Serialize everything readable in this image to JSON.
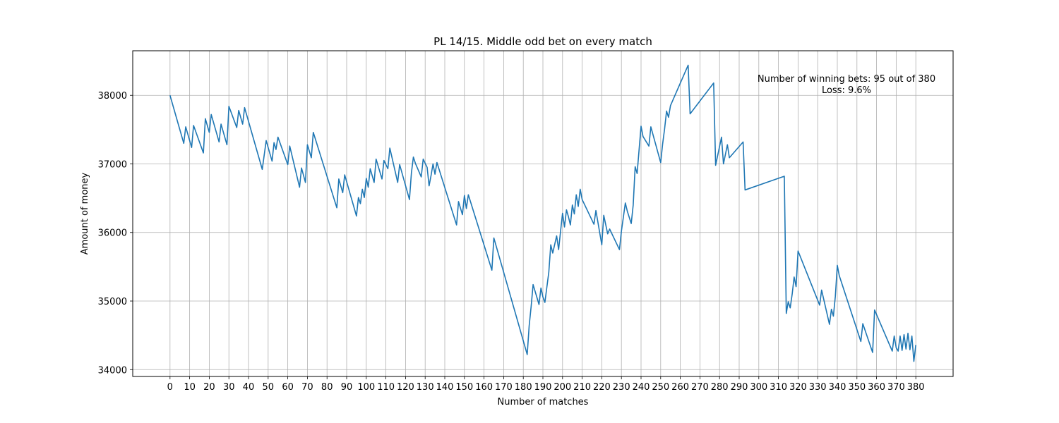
{
  "chart_data": {
    "type": "line",
    "title": "PL 14/15. Middle odd bet on every match",
    "xlabel": "Number of matches",
    "ylabel": "Amount of money",
    "xlim": [
      -19,
      399
    ],
    "ylim": [
      33900,
      38650
    ],
    "xticks": [
      0,
      10,
      20,
      30,
      40,
      50,
      60,
      70,
      80,
      90,
      100,
      110,
      120,
      130,
      140,
      150,
      160,
      170,
      180,
      190,
      200,
      210,
      220,
      230,
      240,
      250,
      260,
      270,
      280,
      290,
      300,
      310,
      320,
      330,
      340,
      350,
      360,
      370,
      380
    ],
    "yticks": [
      34000,
      35000,
      36000,
      37000,
      38000
    ],
    "grid": true,
    "line_color": "#1f77b4",
    "annotations": [
      "Number of winning bets: 95 out of 380",
      "Loss: 9.6%"
    ],
    "series": [
      {
        "x": [
          0,
          7,
          8,
          11,
          12,
          17,
          18,
          20,
          21,
          25,
          26,
          29,
          30,
          34,
          35,
          37,
          38,
          47,
          49,
          52,
          53,
          54,
          55,
          60,
          61,
          66,
          67,
          69,
          70,
          72,
          73,
          85,
          86,
          88,
          89,
          95,
          96,
          97,
          98,
          99,
          100,
          101,
          102,
          104,
          105,
          108,
          109,
          111,
          112,
          116,
          117,
          122,
          123,
          124,
          125,
          128,
          129,
          131,
          132,
          133,
          134,
          135,
          136,
          146,
          147,
          149,
          150,
          151,
          152,
          164,
          165,
          182,
          183,
          184,
          185,
          188,
          189,
          190,
          191,
          192,
          193,
          194,
          195,
          197,
          198,
          199,
          200,
          201,
          202,
          203,
          204,
          205,
          206,
          207,
          208,
          209,
          210,
          216,
          217,
          220,
          221,
          223,
          224,
          229,
          230,
          232,
          233,
          235,
          236,
          237,
          238,
          240,
          241,
          244,
          245,
          250,
          251,
          252,
          253,
          254,
          255,
          264,
          265,
          277,
          278,
          281,
          282,
          284,
          285,
          292,
          293,
          313,
          314,
          315,
          316,
          317,
          318,
          319,
          320,
          331,
          332,
          336,
          337,
          338,
          339,
          340,
          341,
          352,
          353,
          358,
          359,
          368,
          369,
          370,
          371,
          372,
          373,
          374,
          375,
          376,
          377,
          378,
          379,
          380
        ],
        "y": [
          38000,
          37300,
          37540,
          37240,
          37560,
          37160,
          37660,
          37460,
          37720,
          37320,
          37580,
          37280,
          37840,
          37530,
          37780,
          37580,
          37820,
          36920,
          37340,
          37040,
          37310,
          37210,
          37390,
          36990,
          37260,
          36660,
          36940,
          36730,
          37280,
          37090,
          37460,
          36360,
          36780,
          36580,
          36840,
          36240,
          36510,
          36420,
          36630,
          36510,
          36790,
          36660,
          36930,
          36730,
          37070,
          36780,
          37050,
          36930,
          37230,
          36730,
          36990,
          36480,
          36870,
          37100,
          37010,
          36810,
          37070,
          36950,
          36680,
          36830,
          37000,
          36850,
          37020,
          36110,
          36450,
          36260,
          36540,
          36350,
          36550,
          35450,
          35920,
          34220,
          34640,
          34920,
          35240,
          34950,
          35190,
          35060,
          34980,
          35200,
          35420,
          35820,
          35700,
          35950,
          35750,
          36020,
          36280,
          36080,
          36330,
          36230,
          36110,
          36400,
          36270,
          36550,
          36380,
          36630,
          36480,
          36120,
          36320,
          35820,
          36250,
          35980,
          36050,
          35750,
          36020,
          36430,
          36310,
          36130,
          36400,
          36960,
          36860,
          37550,
          37400,
          37260,
          37540,
          37020,
          37290,
          37510,
          37770,
          37680,
          37850,
          38440,
          37730,
          38180,
          36980,
          37390,
          37000,
          37280,
          37090,
          37320,
          36620,
          36820,
          34820,
          34990,
          34900,
          35100,
          35350,
          35210,
          35730,
          34940,
          35160,
          34660,
          34880,
          34780,
          35070,
          35520,
          35370,
          34410,
          34670,
          34250,
          34870,
          34270,
          34490,
          34320,
          34270,
          34490,
          34280,
          34510,
          34300,
          34530,
          34290,
          34490,
          34120,
          34360
        ]
      }
    ]
  }
}
